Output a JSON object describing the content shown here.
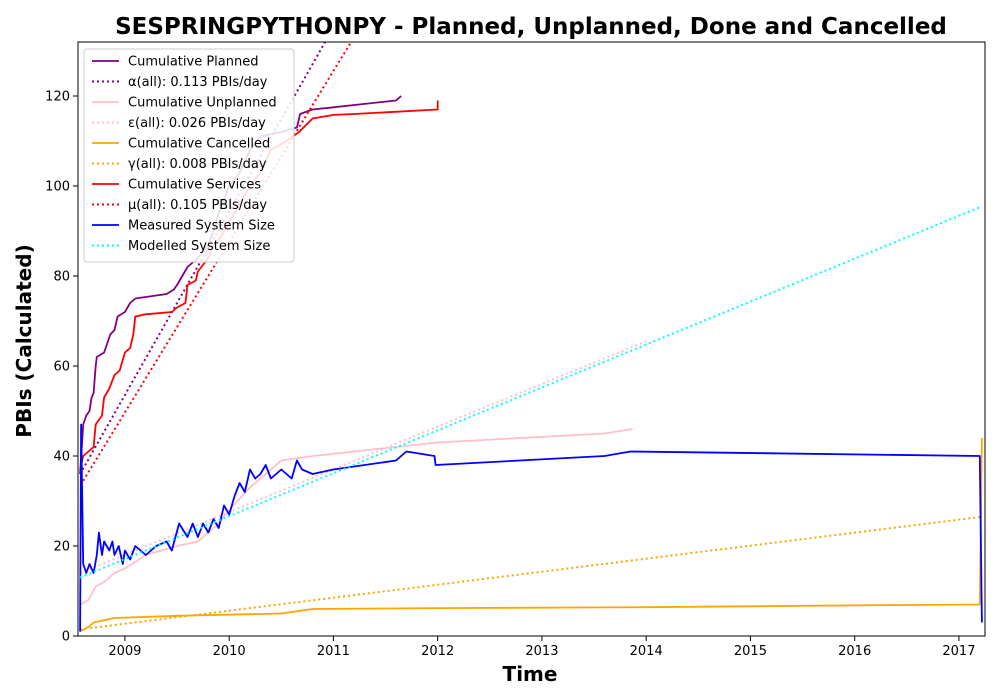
{
  "chart_data": {
    "type": "line",
    "title": "SESPRINGPYTHONPY - Planned, Unplanned, Done  and Cancelled",
    "xlabel": "Time",
    "ylabel": "PBIs (Calculated)",
    "xlim": [
      2008.55,
      2017.25
    ],
    "ylim": [
      0,
      132
    ],
    "xticks": [
      2009,
      2010,
      2011,
      2012,
      2013,
      2014,
      2015,
      2016,
      2017
    ],
    "yticks": [
      0,
      20,
      40,
      60,
      80,
      100,
      120
    ],
    "legend_position": "top-left",
    "series": [
      {
        "name": "Cumulative Planned",
        "style": "solid",
        "color": "#800080",
        "points": [
          [
            2008.57,
            36
          ],
          [
            2008.6,
            47
          ],
          [
            2008.63,
            49
          ],
          [
            2008.66,
            50
          ],
          [
            2008.68,
            53
          ],
          [
            2008.7,
            54
          ],
          [
            2008.72,
            60
          ],
          [
            2008.73,
            62
          ],
          [
            2008.8,
            63
          ],
          [
            2008.83,
            65
          ],
          [
            2008.86,
            67
          ],
          [
            2008.9,
            68
          ],
          [
            2008.93,
            71
          ],
          [
            2009.0,
            72
          ],
          [
            2009.05,
            74
          ],
          [
            2009.1,
            75
          ],
          [
            2009.4,
            76
          ],
          [
            2009.47,
            77
          ],
          [
            2009.5,
            78
          ],
          [
            2009.55,
            80
          ],
          [
            2009.6,
            82
          ],
          [
            2009.7,
            84
          ],
          [
            2009.8,
            87
          ],
          [
            2009.85,
            90
          ],
          [
            2009.9,
            94
          ],
          [
            2010.0,
            100
          ],
          [
            2010.1,
            103
          ],
          [
            2010.2,
            108
          ],
          [
            2010.3,
            111
          ],
          [
            2010.5,
            112
          ],
          [
            2010.65,
            113
          ],
          [
            2010.68,
            116
          ],
          [
            2010.8,
            117
          ],
          [
            2011.0,
            117.5
          ],
          [
            2011.2,
            118
          ],
          [
            2011.6,
            119
          ],
          [
            2011.65,
            120
          ]
        ]
      },
      {
        "name": "α(all): 0.113 PBIs/day",
        "style": "dotted",
        "color": "#800080",
        "points": [
          [
            2008.57,
            36
          ],
          [
            2010.92,
            132
          ]
        ]
      },
      {
        "name": "Cumulative Unplanned",
        "style": "solid",
        "color": "#ffc0cb",
        "points": [
          [
            2008.57,
            7
          ],
          [
            2008.65,
            8
          ],
          [
            2008.72,
            11
          ],
          [
            2008.8,
            12
          ],
          [
            2008.9,
            14
          ],
          [
            2009.0,
            15
          ],
          [
            2009.2,
            18
          ],
          [
            2009.5,
            20
          ],
          [
            2009.7,
            21
          ],
          [
            2009.9,
            25
          ],
          [
            2010.0,
            28
          ],
          [
            2010.2,
            33
          ],
          [
            2010.5,
            39
          ],
          [
            2010.8,
            40
          ],
          [
            2011.2,
            41
          ],
          [
            2011.6,
            42
          ],
          [
            2012.0,
            43
          ],
          [
            2013.6,
            45
          ],
          [
            2013.87,
            46
          ]
        ]
      },
      {
        "name": "ε(all): 0.026 PBIs/day",
        "style": "dotted",
        "color": "#ffc0cb",
        "points": [
          [
            2008.57,
            14
          ],
          [
            2014.0,
            65.5
          ]
        ]
      },
      {
        "name": "Cumulative Cancelled",
        "style": "solid",
        "color": "#ffa500",
        "points": [
          [
            2008.57,
            1
          ],
          [
            2008.65,
            2
          ],
          [
            2008.7,
            3
          ],
          [
            2008.9,
            4
          ],
          [
            2009.5,
            4.5
          ],
          [
            2010.5,
            5
          ],
          [
            2010.8,
            6
          ],
          [
            2012.0,
            6.2
          ],
          [
            2014.0,
            6.4
          ],
          [
            2016.0,
            6.8
          ],
          [
            2017.2,
            7
          ],
          [
            2017.22,
            44
          ]
        ]
      },
      {
        "name": "γ(all): 0.008 PBIs/day",
        "style": "dotted",
        "color": "#ffa500",
        "points": [
          [
            2008.57,
            1.5
          ],
          [
            2017.22,
            26.5
          ]
        ]
      },
      {
        "name": "Cumulative Services",
        "style": "solid",
        "color": "#ff0000",
        "points": [
          [
            2008.57,
            37
          ],
          [
            2008.6,
            40
          ],
          [
            2008.65,
            41
          ],
          [
            2008.7,
            42
          ],
          [
            2008.72,
            47
          ],
          [
            2008.78,
            49
          ],
          [
            2008.8,
            53
          ],
          [
            2008.85,
            55
          ],
          [
            2008.9,
            58
          ],
          [
            2008.95,
            59
          ],
          [
            2009.0,
            63
          ],
          [
            2009.05,
            64
          ],
          [
            2009.08,
            67
          ],
          [
            2009.1,
            71
          ],
          [
            2009.2,
            71.5
          ],
          [
            2009.45,
            72
          ],
          [
            2009.5,
            73
          ],
          [
            2009.58,
            74
          ],
          [
            2009.6,
            78
          ],
          [
            2009.68,
            79
          ],
          [
            2009.7,
            81
          ],
          [
            2009.8,
            84
          ],
          [
            2009.85,
            87
          ],
          [
            2009.9,
            88
          ],
          [
            2010.0,
            92
          ],
          [
            2010.1,
            96
          ],
          [
            2010.2,
            100
          ],
          [
            2010.3,
            103
          ],
          [
            2010.4,
            108
          ],
          [
            2010.55,
            110
          ],
          [
            2010.67,
            112
          ],
          [
            2010.8,
            115
          ],
          [
            2011.0,
            115.8
          ],
          [
            2011.2,
            116
          ],
          [
            2012.0,
            117
          ],
          [
            2012.0,
            119
          ]
        ]
      },
      {
        "name": "μ(all): 0.105 PBIs/day",
        "style": "dotted",
        "color": "#ff0000",
        "points": [
          [
            2008.6,
            34.5
          ],
          [
            2011.17,
            132
          ]
        ]
      },
      {
        "name": "Measured System Size",
        "style": "solid",
        "color": "#0000ff",
        "points": [
          [
            2008.57,
            1
          ],
          [
            2008.58,
            47
          ],
          [
            2008.6,
            16
          ],
          [
            2008.63,
            14
          ],
          [
            2008.66,
            16
          ],
          [
            2008.7,
            14
          ],
          [
            2008.73,
            18
          ],
          [
            2008.75,
            23
          ],
          [
            2008.78,
            18
          ],
          [
            2008.8,
            21
          ],
          [
            2008.85,
            19
          ],
          [
            2008.88,
            21
          ],
          [
            2008.9,
            18
          ],
          [
            2008.94,
            20
          ],
          [
            2008.98,
            16
          ],
          [
            2009.0,
            19
          ],
          [
            2009.05,
            17
          ],
          [
            2009.1,
            20
          ],
          [
            2009.2,
            18
          ],
          [
            2009.3,
            20
          ],
          [
            2009.4,
            21
          ],
          [
            2009.45,
            19
          ],
          [
            2009.52,
            25
          ],
          [
            2009.6,
            22
          ],
          [
            2009.65,
            25
          ],
          [
            2009.7,
            22
          ],
          [
            2009.75,
            25
          ],
          [
            2009.8,
            23
          ],
          [
            2009.85,
            26
          ],
          [
            2009.9,
            24
          ],
          [
            2009.95,
            29
          ],
          [
            2010.0,
            27
          ],
          [
            2010.05,
            31
          ],
          [
            2010.1,
            34
          ],
          [
            2010.15,
            32
          ],
          [
            2010.2,
            37
          ],
          [
            2010.25,
            35
          ],
          [
            2010.3,
            36
          ],
          [
            2010.35,
            38
          ],
          [
            2010.4,
            35
          ],
          [
            2010.5,
            37
          ],
          [
            2010.6,
            35
          ],
          [
            2010.65,
            39
          ],
          [
            2010.7,
            37
          ],
          [
            2010.8,
            36
          ],
          [
            2010.9,
            36.5
          ],
          [
            2011.0,
            37
          ],
          [
            2011.6,
            39
          ],
          [
            2011.7,
            41
          ],
          [
            2011.97,
            40
          ],
          [
            2011.98,
            38
          ],
          [
            2013.6,
            40
          ],
          [
            2013.85,
            41
          ],
          [
            2017.2,
            40
          ],
          [
            2017.22,
            3
          ]
        ]
      },
      {
        "name": "Modelled System Size",
        "style": "dotted",
        "color": "#00ffff",
        "points": [
          [
            2008.57,
            13
          ],
          [
            2017.22,
            95.5
          ]
        ]
      }
    ]
  }
}
